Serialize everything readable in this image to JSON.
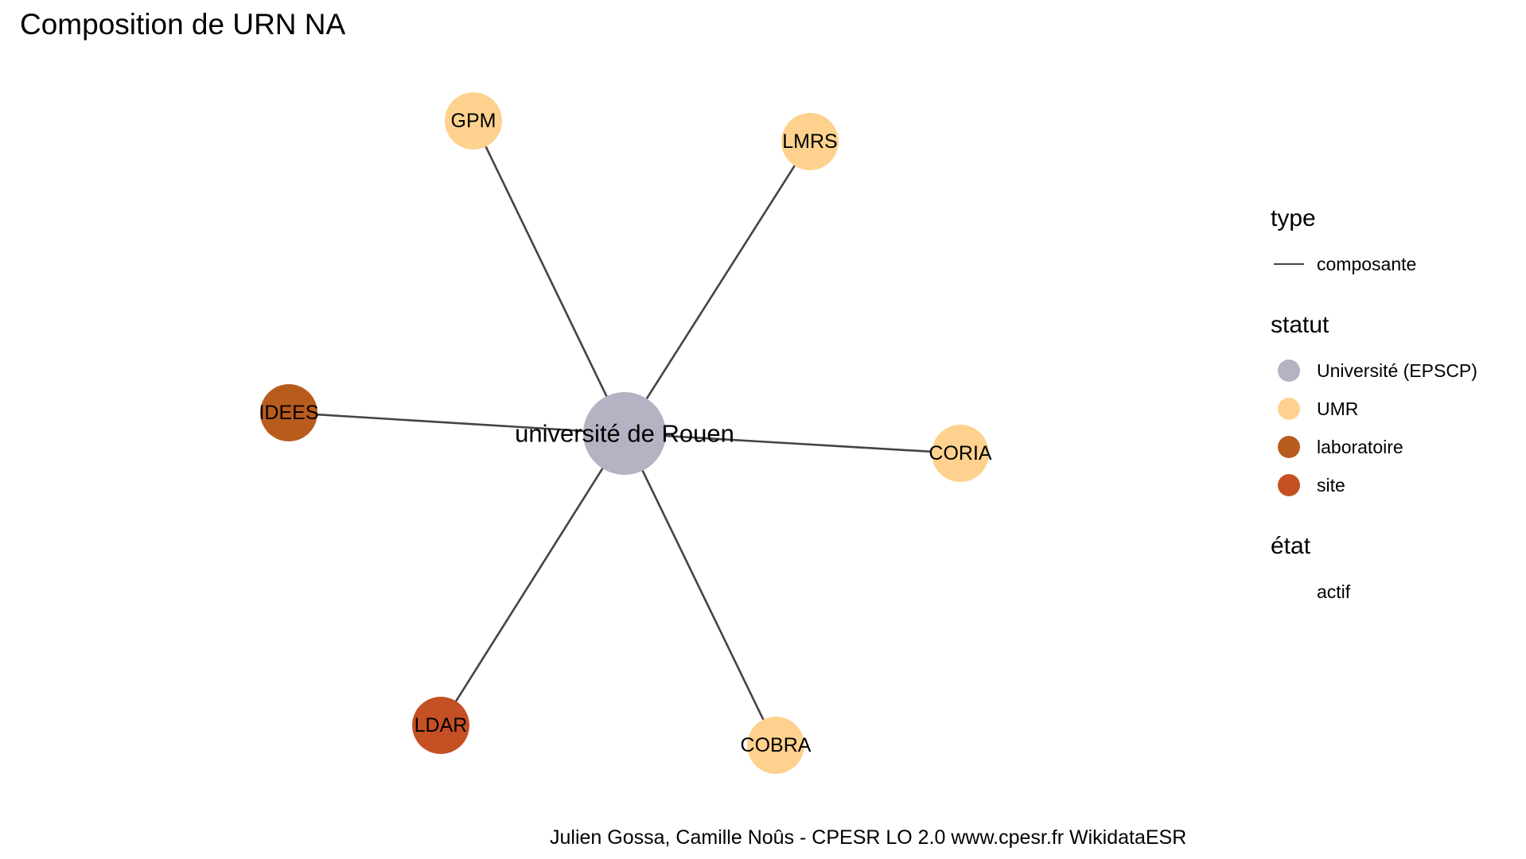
{
  "title": "Composition de URN NA",
  "caption": "Julien Gossa, Camille Noûs - CPESR LO 2.0 www.cpesr.fr WikidataESR",
  "colors": {
    "universite": "#b3b3c4",
    "umr": "#fed28e",
    "laboratoire": "#b85c1e",
    "site": "#c45024",
    "edge": "#444444"
  },
  "network": {
    "hub": {
      "id": "rouen",
      "label": "université de Rouen",
      "statut": "universite"
    },
    "nodes": [
      {
        "id": "gpm",
        "label": "GPM",
        "statut": "umr"
      },
      {
        "id": "lmrs",
        "label": "LMRS",
        "statut": "umr"
      },
      {
        "id": "idees",
        "label": "IDEES",
        "statut": "laboratoire"
      },
      {
        "id": "coria",
        "label": "CORIA",
        "statut": "umr"
      },
      {
        "id": "ldar",
        "label": "LDAR",
        "statut": "site"
      },
      {
        "id": "cobra",
        "label": "COBRA",
        "statut": "umr"
      }
    ],
    "edges": [
      {
        "from": "rouen",
        "to": "gpm",
        "type": "composante"
      },
      {
        "from": "rouen",
        "to": "lmrs",
        "type": "composante"
      },
      {
        "from": "rouen",
        "to": "idees",
        "type": "composante"
      },
      {
        "from": "rouen",
        "to": "coria",
        "type": "composante"
      },
      {
        "from": "rouen",
        "to": "ldar",
        "type": "composante"
      },
      {
        "from": "rouen",
        "to": "cobra",
        "type": "composante"
      }
    ]
  },
  "legend": {
    "type": {
      "title": "type",
      "items": [
        {
          "label": "composante"
        }
      ]
    },
    "statut": {
      "title": "statut",
      "items": [
        {
          "label": "Université (EPSCP)",
          "color": "#b3b3c4"
        },
        {
          "label": "UMR",
          "color": "#fed28e"
        },
        {
          "label": "laboratoire",
          "color": "#b85c1e"
        },
        {
          "label": "site",
          "color": "#c45024"
        }
      ]
    },
    "etat": {
      "title": "état",
      "items": [
        {
          "label": "actif"
        }
      ]
    }
  }
}
